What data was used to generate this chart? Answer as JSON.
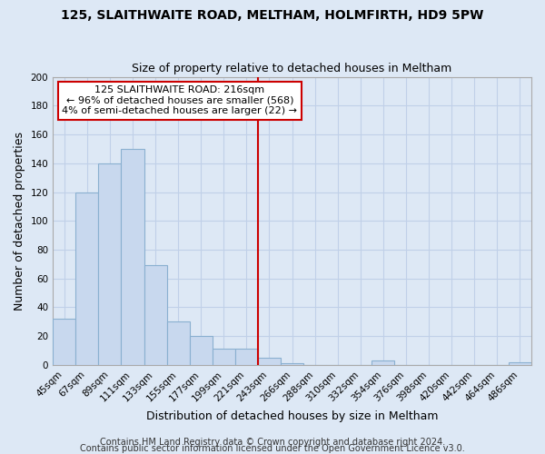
{
  "title": "125, SLAITHWAITE ROAD, MELTHAM, HOLMFIRTH, HD9 5PW",
  "subtitle": "Size of property relative to detached houses in Meltham",
  "xlabel": "Distribution of detached houses by size in Meltham",
  "ylabel": "Number of detached properties",
  "bin_labels": [
    "45sqm",
    "67sqm",
    "89sqm",
    "111sqm",
    "133sqm",
    "155sqm",
    "177sqm",
    "199sqm",
    "221sqm",
    "243sqm",
    "266sqm",
    "288sqm",
    "310sqm",
    "332sqm",
    "354sqm",
    "376sqm",
    "398sqm",
    "420sqm",
    "442sqm",
    "464sqm",
    "486sqm"
  ],
  "bar_values": [
    32,
    120,
    140,
    150,
    69,
    30,
    20,
    11,
    11,
    5,
    1,
    0,
    0,
    0,
    3,
    0,
    0,
    0,
    0,
    0,
    2
  ],
  "bar_color": "#c8d8ee",
  "bar_edge_color": "#8ab0d0",
  "vline_x_bin": 8,
  "vline_color": "#cc0000",
  "annotation_line1": "125 SLAITHWAITE ROAD: 216sqm",
  "annotation_line2": "← 96% of detached houses are smaller (568)",
  "annotation_line3": "4% of semi-detached houses are larger (22) →",
  "ylim": [
    0,
    200
  ],
  "yticks": [
    0,
    20,
    40,
    60,
    80,
    100,
    120,
    140,
    160,
    180,
    200
  ],
  "footer_line1": "Contains HM Land Registry data © Crown copyright and database right 2024.",
  "footer_line2": "Contains public sector information licensed under the Open Government Licence v3.0.",
  "bg_color": "#dde8f5",
  "grid_color": "#c0d0e8",
  "title_fontsize": 10,
  "subtitle_fontsize": 9,
  "axis_label_fontsize": 9,
  "tick_fontsize": 7.5,
  "annotation_fontsize": 8,
  "footer_fontsize": 7
}
